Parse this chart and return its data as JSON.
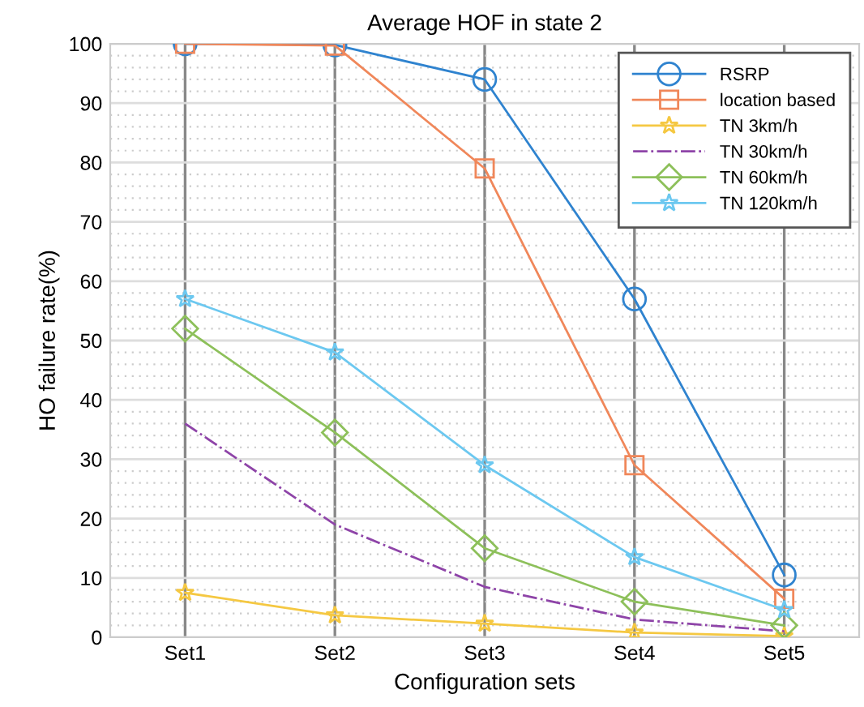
{
  "chart_data": {
    "type": "line",
    "title": "Average HOF in state 2",
    "xlabel": "Configuration sets",
    "ylabel": "HO failure rate(%)",
    "categories": [
      "Set1",
      "Set2",
      "Set3",
      "Set4",
      "Set5"
    ],
    "series": [
      {
        "name": "RSRP",
        "color": "#2f83cf",
        "marker": "circle",
        "line_style": "solid",
        "values": [
          100,
          99.8,
          94,
          57,
          10.5
        ]
      },
      {
        "name": "location based",
        "color": "#f0875a",
        "marker": "square",
        "line_style": "solid",
        "values": [
          100,
          99.7,
          79,
          29,
          6.5
        ]
      },
      {
        "name": "TN 3km/h",
        "color": "#f5c842",
        "marker": "star",
        "line_style": "solid",
        "values": [
          7.5,
          3.7,
          2.3,
          0.8,
          0.2
        ]
      },
      {
        "name": "TN 30km/h",
        "color": "#8e44a8",
        "marker": "none",
        "line_style": "dashdot",
        "values": [
          36,
          19,
          8.5,
          3,
          1
        ]
      },
      {
        "name": "TN 60km/h",
        "color": "#8dc05a",
        "marker": "diamond",
        "line_style": "solid",
        "values": [
          52,
          34.5,
          15,
          6,
          2
        ]
      },
      {
        "name": "TN 120km/h",
        "color": "#6cc8f0",
        "marker": "star",
        "line_style": "solid",
        "values": [
          57,
          48,
          29,
          13.5,
          4.6
        ]
      }
    ],
    "ylim": [
      0,
      100
    ],
    "yticks": [
      0,
      10,
      20,
      30,
      40,
      50,
      60,
      70,
      80,
      90,
      100
    ],
    "grid": true,
    "legend": "top right"
  }
}
